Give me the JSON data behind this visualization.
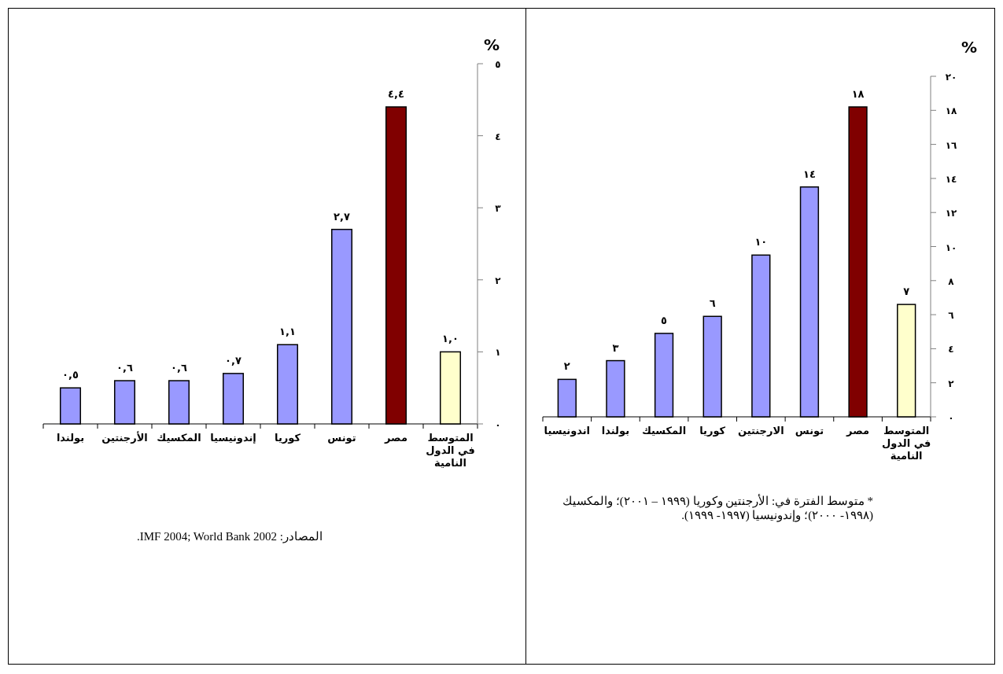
{
  "chart_data": [
    {
      "type": "bar",
      "ylabel": "%",
      "categories": [
        "اندونيسيا",
        "بولندا",
        "المكسيك",
        "كوريا",
        "الارجنتين",
        "تونس",
        "مصر",
        "المتوسط في الدول النامية"
      ],
      "values": [
        2.2,
        3.3,
        4.9,
        5.9,
        9.5,
        13.5,
        18.2,
        6.6
      ],
      "colors": [
        "#9999ff",
        "#9999ff",
        "#9999ff",
        "#9999ff",
        "#9999ff",
        "#9999ff",
        "#800000",
        "#ffffcc"
      ],
      "value_labels": [
        "٢",
        "٣",
        "٥",
        "٦",
        "١٠",
        "١٤",
        "١٨",
        "٧"
      ],
      "ylim": [
        0,
        20
      ],
      "yticks": [
        {
          "value": 0,
          "label": "٠"
        },
        {
          "value": 2,
          "label": "٢"
        },
        {
          "value": 4,
          "label": "٤"
        },
        {
          "value": 6,
          "label": "٦"
        },
        {
          "value": 8,
          "label": "٨"
        },
        {
          "value": 10,
          "label": "١٠"
        },
        {
          "value": 12,
          "label": "١٢"
        },
        {
          "value": 14,
          "label": "١٤"
        },
        {
          "value": 16,
          "label": "١٦"
        },
        {
          "value": 18,
          "label": "١٨"
        },
        {
          "value": 20,
          "label": "٢٠"
        }
      ],
      "grid": false,
      "annotations": [
        "* متوسط الفترة في: الأرجنتين وكوريا (١٩٩٩ – ٢٠٠١)؛ والمكسيك (١٩٩٨- ٢٠٠٠)؛ وإندونيسيا (١٩٩٧- ١٩٩٩)."
      ]
    },
    {
      "type": "bar",
      "ylabel": "%",
      "categories": [
        "بولندا",
        "الأرجنتين",
        "المكسيك",
        "إندونيسيا",
        "كوريا",
        "تونس",
        "مصر",
        "المتوسط في الدول النامية"
      ],
      "values": [
        0.5,
        0.6,
        0.6,
        0.7,
        1.1,
        2.7,
        4.4,
        1.0
      ],
      "colors": [
        "#9999ff",
        "#9999ff",
        "#9999ff",
        "#9999ff",
        "#9999ff",
        "#9999ff",
        "#800000",
        "#ffffcc"
      ],
      "value_labels": [
        "٠,٥",
        "٠,٦",
        "٠,٦",
        "٠,٧",
        "١,١",
        "٢,٧",
        "٤,٤",
        "١,٠"
      ],
      "ylim": [
        0,
        5
      ],
      "yticks": [
        {
          "value": 0,
          "label": "٠"
        },
        {
          "value": 1,
          "label": "١"
        },
        {
          "value": 2,
          "label": "٢"
        },
        {
          "value": 3,
          "label": "٣"
        },
        {
          "value": 4,
          "label": "٤"
        },
        {
          "value": 5,
          "label": "٥"
        }
      ],
      "grid": false,
      "annotations": [
        "المصادر: IMF 2004; World Bank 2002."
      ]
    }
  ]
}
